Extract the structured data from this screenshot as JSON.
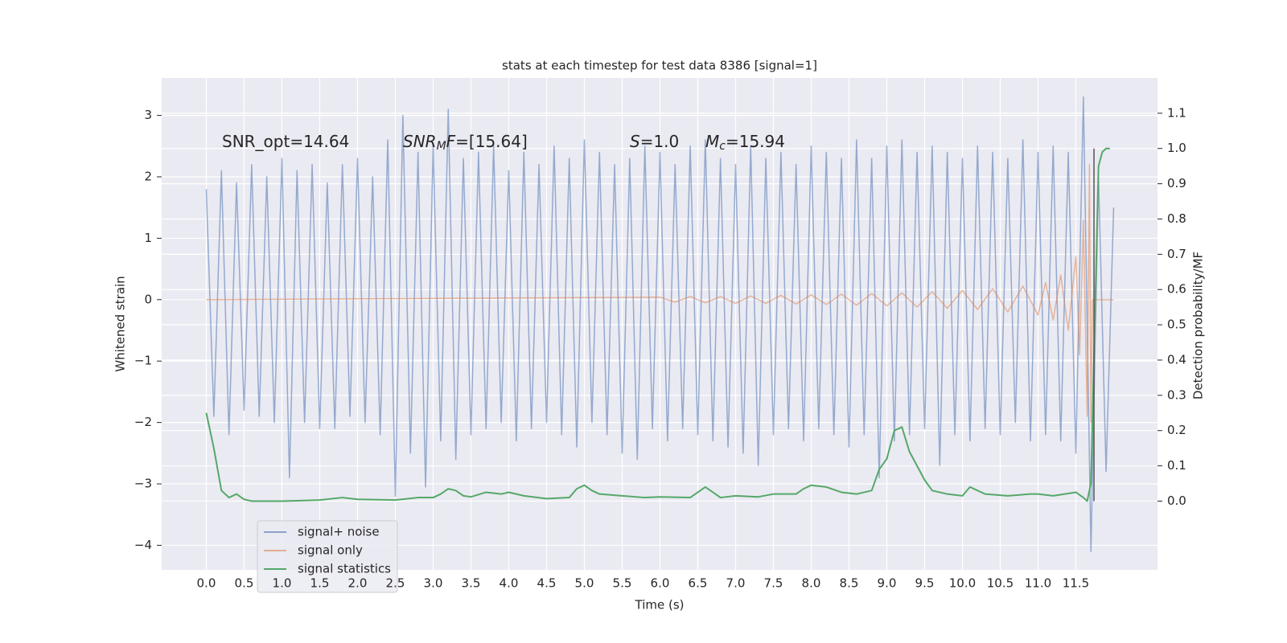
{
  "chart_data": {
    "type": "line",
    "title": "stats at each timestep for test data 8386 [signal=1]",
    "xlabel": "Time (s)",
    "ylabel": "Whitened strain",
    "y2label": "Detection probability/MF",
    "annotations": [
      [
        "SNR_opt=14.64"
      ],
      [
        "SNR",
        "M",
        "F",
        "=[15.64]"
      ],
      [
        "S",
        "=1.0"
      ],
      [
        "M",
        "c",
        "=15.94"
      ]
    ],
    "xlim": [
      -0.59,
      12.58
    ],
    "xticks": [
      {
        "value": 0,
        "label": "0.0"
      },
      0.5,
      {
        "value": 1,
        "label": "1.0"
      },
      1.5,
      {
        "value": 2,
        "label": "2.0"
      },
      2.5,
      {
        "value": 3,
        "label": "3.0"
      },
      3.5,
      {
        "value": 4,
        "label": "4.0"
      },
      4.5,
      {
        "value": 5,
        "label": "5.0"
      },
      5.5,
      {
        "value": 6,
        "label": "6.0"
      },
      6.5,
      {
        "value": 7,
        "label": "7.0"
      },
      7.5,
      {
        "value": 8,
        "label": "8.0"
      },
      8.5,
      {
        "value": 9,
        "label": "9.0"
      },
      9.5,
      {
        "value": 10,
        "label": "10.0"
      },
      10.5,
      {
        "value": 11,
        "label": "11.0"
      },
      11.5
    ],
    "ylim": [
      -4.4,
      3.61
    ],
    "yticks": [
      {
        "value": -4,
        "label": "−4"
      },
      {
        "value": -3,
        "label": "−3"
      },
      {
        "value": -2,
        "label": "−2"
      },
      {
        "value": -1,
        "label": "−1"
      },
      0,
      1,
      2,
      3
    ],
    "y2lim": [
      -0.195,
      1.2
    ],
    "y2ticks": [
      {
        "value": 0,
        "label": "0.0"
      },
      0.1,
      0.2,
      0.3,
      0.4,
      0.5,
      0.6,
      0.7,
      0.8,
      0.9,
      {
        "value": 1,
        "label": "1.0"
      },
      1.1
    ],
    "grid": true,
    "legend": "lower left",
    "series": [
      {
        "name": "signal+ noise",
        "color": "#4c72b0",
        "x": [
          0,
          0.1,
          0.2,
          0.3,
          0.4,
          0.5,
          0.6,
          0.7,
          0.8,
          0.9,
          1,
          1.1,
          1.2,
          1.3,
          1.4,
          1.5,
          1.6,
          1.7,
          1.8,
          1.9,
          2,
          2.1,
          2.2,
          2.3,
          2.4,
          2.5,
          2.6,
          2.7,
          2.8,
          2.9,
          3,
          3.1,
          3.2,
          3.3,
          3.4,
          3.5,
          3.6,
          3.7,
          3.8,
          3.9,
          4,
          4.1,
          4.2,
          4.3,
          4.4,
          4.5,
          4.6,
          4.7,
          4.8,
          4.9,
          5,
          5.1,
          5.2,
          5.3,
          5.4,
          5.5,
          5.6,
          5.7,
          5.8,
          5.9,
          6,
          6.1,
          6.2,
          6.3,
          6.4,
          6.5,
          6.6,
          6.7,
          6.8,
          6.9,
          7,
          7.1,
          7.2,
          7.3,
          7.4,
          7.5,
          7.6,
          7.7,
          7.8,
          7.9,
          8,
          8.1,
          8.2,
          8.3,
          8.4,
          8.5,
          8.6,
          8.7,
          8.8,
          8.9,
          9,
          9.1,
          9.2,
          9.3,
          9.4,
          9.5,
          9.6,
          9.7,
          9.8,
          9.9,
          10,
          10.1,
          10.2,
          10.3,
          10.4,
          10.5,
          10.6,
          10.7,
          10.8,
          10.9,
          11,
          11.1,
          11.2,
          11.3,
          11.4,
          11.5,
          11.6,
          11.7,
          11.8,
          11.9,
          12
        ],
        "values": [
          1.8,
          -1.9,
          2.1,
          -2.2,
          1.9,
          -1.8,
          2.2,
          -1.9,
          2.0,
          -2.0,
          2.3,
          -2.9,
          2.1,
          -2.0,
          2.2,
          -2.1,
          1.9,
          -2.1,
          2.2,
          -1.9,
          2.3,
          -2.0,
          2.0,
          -2.2,
          2.6,
          -3.2,
          3.0,
          -2.5,
          2.4,
          -3.05,
          2.5,
          -2.3,
          3.1,
          -2.6,
          2.3,
          -2.2,
          2.4,
          -2.1,
          2.5,
          -2.0,
          2.1,
          -2.3,
          2.4,
          -2.1,
          2.2,
          -2.0,
          2.5,
          -2.2,
          2.3,
          -2.4,
          2.6,
          -2.0,
          2.4,
          -2.2,
          2.2,
          -2.5,
          2.3,
          -2.6,
          2.5,
          -2.1,
          2.4,
          -2.3,
          2.2,
          -2.1,
          2.5,
          -2.2,
          2.6,
          -2.3,
          2.3,
          -2.4,
          2.2,
          -2.5,
          2.5,
          -2.7,
          2.3,
          -2.2,
          2.4,
          -2.1,
          2.2,
          -2.3,
          2.5,
          -2.1,
          2.4,
          -2.2,
          2.3,
          -2.4,
          2.6,
          -2.2,
          2.3,
          -2.9,
          2.5,
          -2.3,
          2.6,
          -2.2,
          2.4,
          -2.1,
          2.5,
          -2.7,
          2.4,
          -2.2,
          2.3,
          -2.3,
          2.5,
          -2.1,
          2.4,
          -2.2,
          2.3,
          -2.0,
          2.6,
          -2.3,
          2.4,
          -2.2,
          2.5,
          -2.3,
          2.4,
          -2.5,
          3.3,
          -4.1,
          2.0,
          -2.8,
          1.5
        ]
      },
      {
        "name": "signal only",
        "color": "#dd8452",
        "x": [
          0,
          6,
          6.2,
          6.4,
          6.6,
          6.8,
          7,
          7.2,
          7.4,
          7.6,
          7.8,
          8,
          8.2,
          8.4,
          8.6,
          8.8,
          9,
          9.2,
          9.4,
          9.6,
          9.8,
          10,
          10.2,
          10.4,
          10.6,
          10.8,
          11,
          11.1,
          11.2,
          11.3,
          11.4,
          11.5,
          11.55,
          11.6,
          11.65,
          11.68,
          11.7,
          11.72,
          12
        ],
        "values": [
          0,
          0.04,
          -0.04,
          0.05,
          -0.05,
          0.05,
          -0.06,
          0.06,
          -0.06,
          0.07,
          -0.07,
          0.08,
          -0.08,
          0.09,
          -0.09,
          0.1,
          -0.1,
          0.11,
          -0.12,
          0.13,
          -0.14,
          0.15,
          -0.16,
          0.18,
          -0.2,
          0.22,
          -0.25,
          0.28,
          -0.33,
          0.4,
          -0.5,
          0.7,
          -0.9,
          1.3,
          -1.9,
          2.2,
          -2.0,
          0,
          0
        ]
      },
      {
        "name": "signal statistics",
        "color": "#55a868",
        "axis": "y2",
        "x": [
          0,
          0.1,
          0.2,
          0.3,
          0.4,
          0.5,
          0.6,
          0.8,
          1,
          1.5,
          1.8,
          2,
          2.5,
          2.8,
          3,
          3.1,
          3.2,
          3.3,
          3.4,
          3.5,
          3.7,
          3.9,
          4,
          4.2,
          4.5,
          4.8,
          4.9,
          5,
          5.1,
          5.2,
          5.5,
          5.8,
          6,
          6.4,
          6.6,
          6.8,
          7,
          7.3,
          7.5,
          7.8,
          7.9,
          8,
          8.2,
          8.4,
          8.6,
          8.8,
          8.9,
          9,
          9.1,
          9.2,
          9.3,
          9.5,
          9.6,
          9.8,
          10,
          10.1,
          10.3,
          10.6,
          10.9,
          11,
          11.2,
          11.5,
          11.6,
          11.65,
          11.7,
          11.75,
          11.8,
          11.85,
          11.9,
          11.95
        ],
        "values": [
          0.25,
          0.15,
          0.03,
          0.01,
          0.02,
          0.005,
          0,
          0,
          0,
          0.003,
          0.01,
          0.005,
          0.003,
          0.01,
          0.01,
          0.02,
          0.035,
          0.03,
          0.015,
          0.012,
          0.025,
          0.02,
          0.025,
          0.015,
          0.007,
          0.01,
          0.035,
          0.045,
          0.03,
          0.02,
          0.015,
          0.01,
          0.012,
          0.01,
          0.04,
          0.01,
          0.015,
          0.012,
          0.02,
          0.02,
          0.035,
          0.045,
          0.04,
          0.025,
          0.02,
          0.03,
          0.09,
          0.12,
          0.2,
          0.21,
          0.14,
          0.06,
          0.03,
          0.02,
          0.015,
          0.04,
          0.02,
          0.015,
          0.02,
          0.02,
          0.015,
          0.025,
          0.01,
          0,
          0.05,
          0.5,
          0.95,
          0.99,
          1,
          1
        ]
      }
    ],
    "vline": {
      "x": 11.74,
      "ymin": 0,
      "ymax": 1
    }
  }
}
